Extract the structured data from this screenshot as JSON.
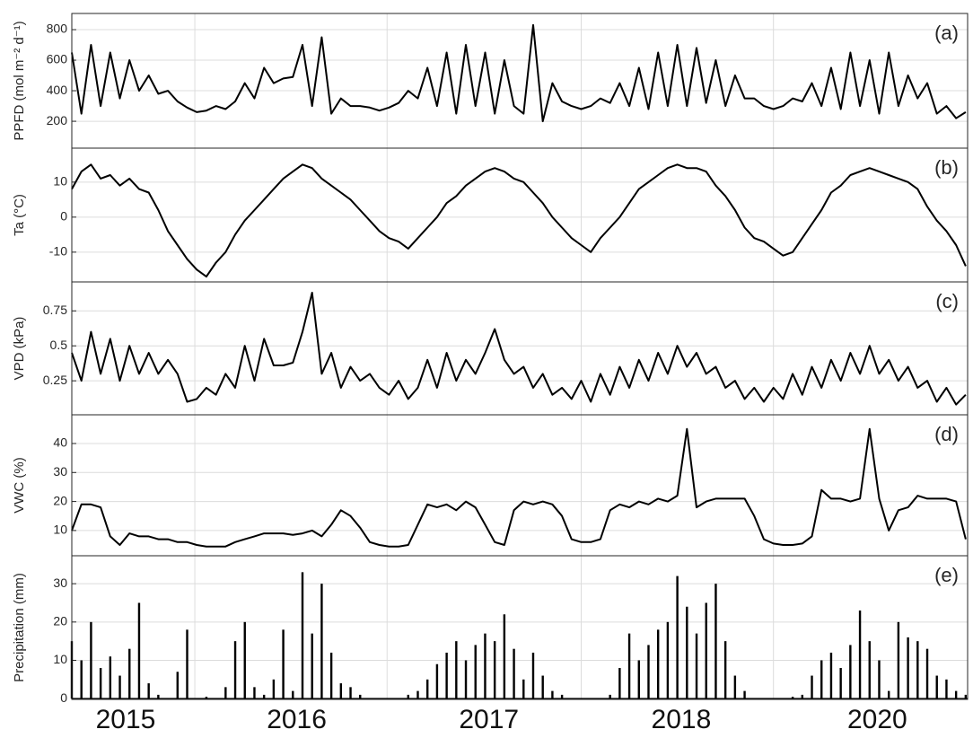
{
  "chart_data": {
    "type": "multi-panel",
    "x": [
      0,
      0.05,
      0.1,
      0.15,
      0.2,
      0.25,
      0.3,
      0.35,
      0.4,
      0.45,
      0.5,
      0.55,
      0.6,
      0.65,
      0.7,
      0.75,
      0.8,
      0.85,
      0.9,
      0.95,
      1,
      1.05,
      1.1,
      1.15,
      1.2,
      1.25,
      1.3,
      1.35,
      1.4,
      1.45,
      1.5,
      1.55,
      1.6,
      1.65,
      1.7,
      1.75,
      1.8,
      1.85,
      1.9,
      1.95,
      2,
      2.05,
      2.1,
      2.15,
      2.2,
      2.25,
      2.3,
      2.35,
      2.4,
      2.45,
      2.5,
      2.55,
      2.6,
      2.65,
      2.7,
      2.75,
      2.8,
      2.85,
      2.9,
      2.95,
      3,
      3.05,
      3.1,
      3.15,
      3.2,
      3.25,
      3.3,
      3.35,
      3.4,
      3.45,
      3.5,
      3.55,
      3.6,
      3.65,
      3.7,
      3.75,
      3.8,
      3.85,
      3.9,
      3.95,
      4,
      4.05,
      4.1,
      4.15,
      4.2,
      4.25,
      4.3,
      4.35,
      4.4,
      4.45,
      4.5,
      4.55,
      4.6,
      4.65
    ],
    "xlim": [
      0,
      4.66
    ],
    "xticks": [
      {
        "value": 0.28,
        "label": "2015"
      },
      {
        "value": 1.17,
        "label": "2016"
      },
      {
        "value": 2.17,
        "label": "2017"
      },
      {
        "value": 3.17,
        "label": "2018"
      },
      {
        "value": 4.19,
        "label": "2020"
      }
    ],
    "xgrid": [
      0.64,
      1.64,
      2.65,
      3.65
    ],
    "grid": true,
    "color": "#000000",
    "panels": [
      {
        "type": "line",
        "label": "(a)",
        "ylabel": "PPFD (mol m⁻² d⁻¹)",
        "ylim": [
          24,
          906
        ],
        "yticks": [
          200,
          400,
          600,
          800
        ],
        "values": [
          650,
          250,
          700,
          300,
          650,
          350,
          600,
          400,
          500,
          380,
          400,
          330,
          290,
          260,
          270,
          300,
          280,
          330,
          450,
          350,
          550,
          450,
          480,
          490,
          700,
          300,
          750,
          250,
          350,
          300,
          300,
          290,
          270,
          290,
          320,
          400,
          350,
          550,
          300,
          650,
          250,
          700,
          300,
          650,
          250,
          600,
          300,
          250,
          830,
          200,
          450,
          330,
          300,
          280,
          300,
          350,
          320,
          450,
          300,
          550,
          280,
          650,
          300,
          700,
          300,
          680,
          320,
          600,
          300,
          500,
          350,
          350,
          300,
          280,
          300,
          350,
          330,
          450,
          300,
          550,
          280,
          650,
          300,
          600,
          250,
          650,
          300,
          500,
          350,
          450,
          250,
          300,
          220,
          260
        ]
      },
      {
        "type": "line",
        "label": "(b)",
        "ylabel": "Ta (°C)",
        "ylim": [
          -18.5,
          19.7
        ],
        "yticks": [
          -10,
          0,
          10
        ],
        "values": [
          8,
          13,
          15,
          11,
          12,
          9,
          11,
          8,
          7,
          2,
          -4,
          -8,
          -12,
          -15,
          -17,
          -13,
          -10,
          -5,
          -1,
          2,
          5,
          8,
          11,
          13,
          15,
          14,
          11,
          9,
          7,
          5,
          2,
          -1,
          -4,
          -6,
          -7,
          -9,
          -6,
          -3,
          0,
          4,
          6,
          9,
          11,
          13,
          14,
          13,
          11,
          10,
          7,
          4,
          0,
          -3,
          -6,
          -8,
          -10,
          -6,
          -3,
          0,
          4,
          8,
          10,
          12,
          14,
          15,
          14,
          14,
          13,
          9,
          6,
          2,
          -3,
          -6,
          -7,
          -9,
          -11,
          -10,
          -6,
          -2,
          2,
          7,
          9,
          12,
          13,
          14,
          13,
          12,
          11,
          10,
          8,
          3,
          -1,
          -4,
          -8,
          -14
        ]
      },
      {
        "type": "line",
        "label": "(c)",
        "ylabel": "VPD (kPa)",
        "ylim": [
          0.007,
          0.957
        ],
        "yticks": [
          0.25,
          0.5,
          0.75
        ],
        "values": [
          0.45,
          0.25,
          0.6,
          0.3,
          0.55,
          0.25,
          0.5,
          0.3,
          0.45,
          0.3,
          0.4,
          0.3,
          0.1,
          0.12,
          0.2,
          0.15,
          0.3,
          0.2,
          0.5,
          0.25,
          0.55,
          0.36,
          0.36,
          0.38,
          0.6,
          0.88,
          0.3,
          0.45,
          0.2,
          0.35,
          0.25,
          0.3,
          0.2,
          0.15,
          0.25,
          0.12,
          0.2,
          0.4,
          0.2,
          0.45,
          0.25,
          0.4,
          0.3,
          0.45,
          0.62,
          0.4,
          0.3,
          0.35,
          0.2,
          0.3,
          0.15,
          0.2,
          0.12,
          0.25,
          0.1,
          0.3,
          0.15,
          0.35,
          0.2,
          0.4,
          0.25,
          0.45,
          0.3,
          0.5,
          0.35,
          0.45,
          0.3,
          0.35,
          0.2,
          0.25,
          0.12,
          0.2,
          0.1,
          0.2,
          0.12,
          0.3,
          0.15,
          0.35,
          0.2,
          0.4,
          0.25,
          0.45,
          0.3,
          0.5,
          0.3,
          0.4,
          0.25,
          0.35,
          0.2,
          0.25,
          0.1,
          0.2,
          0.08,
          0.15
        ]
      },
      {
        "type": "line",
        "label": "(d)",
        "ylabel": "VWC (%)",
        "ylim": [
          1.3,
          49.9
        ],
        "yticks": [
          10,
          20,
          30,
          40
        ],
        "values": [
          10,
          19,
          19,
          18,
          8,
          5,
          9,
          8,
          8,
          7,
          7,
          6,
          6,
          5,
          4.5,
          4.5,
          4.5,
          6,
          7,
          8,
          9,
          9,
          9,
          8.5,
          9,
          10,
          8,
          12,
          17,
          15,
          11,
          6,
          5,
          4.5,
          4.5,
          5,
          12,
          19,
          18,
          19,
          17,
          20,
          18,
          12,
          6,
          5,
          17,
          20,
          19,
          20,
          19,
          15,
          7,
          6,
          6,
          7,
          17,
          19,
          18,
          20,
          19,
          21,
          20,
          22,
          45,
          18,
          20,
          21,
          21,
          21,
          21,
          15,
          7,
          5.5,
          5,
          5,
          5.5,
          8,
          24,
          21,
          21,
          20,
          21,
          45,
          21,
          10,
          17,
          18,
          22,
          21,
          21,
          21,
          20,
          7
        ]
      },
      {
        "type": "bar",
        "label": "(e)",
        "ylabel": "Precipitation (mm)",
        "ylim": [
          -0.2,
          37.3
        ],
        "yticks": [
          0,
          10,
          20,
          30
        ],
        "values": [
          15,
          10,
          20,
          8,
          11,
          6,
          13,
          25,
          4,
          1,
          0,
          7,
          18,
          0,
          0.5,
          0,
          3,
          15,
          20,
          3,
          1,
          5,
          18,
          2,
          33,
          17,
          30,
          12,
          4,
          3,
          1,
          0,
          0,
          0,
          0,
          1,
          2,
          5,
          9,
          12,
          15,
          10,
          14,
          17,
          15,
          22,
          13,
          5,
          12,
          6,
          2,
          1,
          0,
          0,
          0,
          0,
          1,
          8,
          17,
          10,
          14,
          18,
          20,
          32,
          24,
          17,
          25,
          30,
          15,
          6,
          2,
          0,
          0,
          0,
          0,
          0.5,
          1,
          6,
          10,
          12,
          8,
          14,
          23,
          15,
          10,
          2,
          20,
          16,
          15,
          13,
          6,
          5,
          2,
          1
        ]
      }
    ]
  }
}
